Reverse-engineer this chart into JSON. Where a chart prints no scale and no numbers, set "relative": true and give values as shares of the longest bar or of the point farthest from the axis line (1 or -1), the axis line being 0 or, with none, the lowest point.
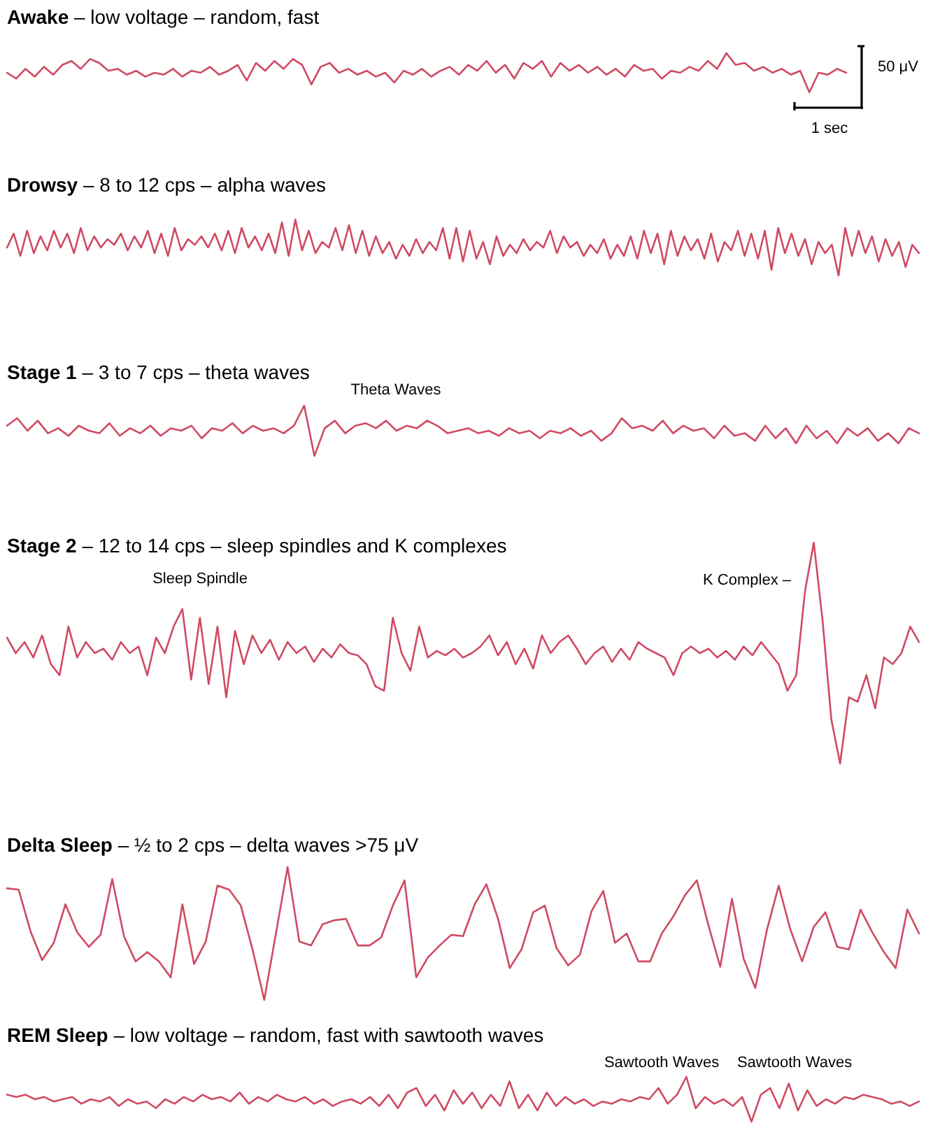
{
  "chart_data": [
    {
      "type": "line",
      "title": "Awake – low voltage – random, fast",
      "relative": true,
      "annotations": [
        "50 μV",
        "1 sec"
      ],
      "categories": [
        null,
        null,
        null,
        null,
        null,
        null,
        null,
        null,
        null,
        null,
        null,
        null,
        null,
        null,
        null,
        null,
        null,
        null,
        null,
        null,
        null,
        null,
        null,
        null,
        null,
        null,
        null,
        null,
        null,
        null,
        null,
        null,
        null,
        null,
        null,
        null,
        null,
        null,
        null,
        null,
        null,
        null,
        null,
        null,
        null,
        null,
        null,
        null,
        null,
        null,
        null,
        null,
        null,
        null,
        null,
        null,
        null,
        null,
        null,
        null,
        null,
        null,
        null,
        null,
        null,
        null,
        null,
        null,
        null,
        null,
        null,
        null,
        null,
        null,
        null,
        null,
        null,
        null,
        null,
        null,
        null,
        null,
        null,
        null,
        null,
        null,
        null,
        null,
        null,
        null,
        null,
        null
      ],
      "series": [
        {
          "color": "#cf4a62",
          "values": [
            0.5,
            0.35,
            0.6,
            0.4,
            0.65,
            0.45,
            0.7,
            0.8,
            0.6,
            0.85,
            0.75,
            0.55,
            0.6,
            0.45,
            0.55,
            0.4,
            0.5,
            0.45,
            0.6,
            0.4,
            0.55,
            0.5,
            0.65,
            0.45,
            0.55,
            0.7,
            0.3,
            0.75,
            0.55,
            0.8,
            0.6,
            0.85,
            0.7,
            0.2,
            0.65,
            0.75,
            0.5,
            0.6,
            0.45,
            0.55,
            0.4,
            0.5,
            0.25,
            0.55,
            0.45,
            0.6,
            0.4,
            0.55,
            0.65,
            0.45,
            0.7,
            0.55,
            0.8,
            0.5,
            0.7,
            0.35,
            0.75,
            0.6,
            0.8,
            0.4,
            0.75,
            0.55,
            0.7,
            0.5,
            0.65,
            0.45,
            0.6,
            0.4,
            0.7,
            0.55,
            0.6,
            0.35,
            0.55,
            0.5,
            0.65,
            0.55,
            0.8,
            0.6,
            1,
            0.7,
            0.75,
            0.55,
            0.65,
            0.5,
            0.6,
            0.45,
            0.55,
            0,
            0.5,
            0.45,
            0.6,
            0.5
          ]
        }
      ]
    },
    {
      "type": "line",
      "title": "Drowsy – 8 to 12 cps – alpha waves",
      "relative": true,
      "categories": [
        null,
        null,
        null,
        null,
        null,
        null,
        null,
        null,
        null,
        null,
        null,
        null,
        null,
        null,
        null,
        null,
        null,
        null,
        null,
        null,
        null,
        null,
        null,
        null,
        null,
        null,
        null,
        null,
        null,
        null,
        null,
        null,
        null,
        null,
        null,
        null,
        null,
        null,
        null,
        null,
        null,
        null,
        null,
        null,
        null,
        null,
        null,
        null,
        null,
        null,
        null,
        null,
        null,
        null,
        null,
        null,
        null,
        null,
        null,
        null,
        null,
        null,
        null,
        null,
        null,
        null,
        null,
        null,
        null,
        null,
        null,
        null,
        null,
        null,
        null,
        null,
        null,
        null,
        null,
        null,
        null,
        null,
        null,
        null,
        null,
        null,
        null,
        null,
        null,
        null,
        null,
        null,
        null,
        null,
        null,
        null,
        null,
        null,
        null,
        null,
        null,
        null,
        null,
        null,
        null,
        null,
        null,
        null,
        null,
        null,
        null,
        null,
        null,
        null,
        null,
        null,
        null,
        null,
        null,
        null,
        null,
        null,
        null,
        null,
        null,
        null,
        null,
        null,
        null,
        null,
        null,
        null,
        null,
        null,
        null,
        null,
        null
      ],
      "series": [
        {
          "color": "#cf4a62",
          "values": [
            0.5,
            0.75,
            0.35,
            0.8,
            0.4,
            0.7,
            0.45,
            0.8,
            0.5,
            0.75,
            0.4,
            0.85,
            0.45,
            0.7,
            0.5,
            0.65,
            0.55,
            0.75,
            0.45,
            0.7,
            0.5,
            0.8,
            0.4,
            0.75,
            0.35,
            0.85,
            0.45,
            0.65,
            0.55,
            0.7,
            0.5,
            0.75,
            0.45,
            0.8,
            0.4,
            0.85,
            0.5,
            0.7,
            0.45,
            0.75,
            0.4,
            0.95,
            0.35,
            1,
            0.45,
            0.8,
            0.4,
            0.6,
            0.5,
            0.85,
            0.45,
            0.9,
            0.4,
            0.8,
            0.35,
            0.7,
            0.4,
            0.6,
            0.3,
            0.55,
            0.35,
            0.65,
            0.4,
            0.6,
            0.45,
            0.85,
            0.3,
            0.85,
            0.25,
            0.8,
            0.3,
            0.6,
            0.2,
            0.7,
            0.35,
            0.55,
            0.4,
            0.65,
            0.45,
            0.6,
            0.5,
            0.8,
            0.4,
            0.7,
            0.5,
            0.6,
            0.35,
            0.55,
            0.4,
            0.65,
            0.3,
            0.55,
            0.35,
            0.7,
            0.3,
            0.8,
            0.4,
            0.75,
            0.2,
            0.8,
            0.35,
            0.7,
            0.45,
            0.65,
            0.3,
            0.75,
            0.25,
            0.6,
            0.45,
            0.8,
            0.35,
            0.75,
            0.3,
            0.8,
            0.1,
            0.85,
            0.4,
            0.75,
            0.35,
            0.65,
            0.2,
            0.6,
            0.4,
            0.55,
            0,
            0.85,
            0.35,
            0.8,
            0.4,
            0.7,
            0.25,
            0.65,
            0.35,
            0.6,
            0.15,
            0.55,
            0.4
          ]
        }
      ]
    },
    {
      "type": "line",
      "title": "Stage 1 – 3 to 7 cps – theta waves",
      "relative": true,
      "annotations": [
        "Theta Waves"
      ],
      "categories": [
        null,
        null,
        null,
        null,
        null,
        null,
        null,
        null,
        null,
        null,
        null,
        null,
        null,
        null,
        null,
        null,
        null,
        null,
        null,
        null,
        null,
        null,
        null,
        null,
        null,
        null,
        null,
        null,
        null,
        null,
        null,
        null,
        null,
        null,
        null,
        null,
        null,
        null,
        null,
        null,
        null,
        null,
        null,
        null,
        null,
        null,
        null,
        null,
        null,
        null,
        null,
        null,
        null,
        null,
        null,
        null,
        null,
        null,
        null,
        null,
        null,
        null,
        null,
        null,
        null,
        null,
        null,
        null,
        null,
        null,
        null,
        null,
        null,
        null,
        null,
        null,
        null,
        null,
        null,
        null,
        null,
        null,
        null,
        null,
        null,
        null,
        null,
        null,
        null,
        null
      ],
      "series": [
        {
          "color": "#cf4a62",
          "values": [
            0.6,
            0.75,
            0.5,
            0.7,
            0.45,
            0.55,
            0.4,
            0.6,
            0.5,
            0.45,
            0.65,
            0.4,
            0.55,
            0.45,
            0.6,
            0.4,
            0.55,
            0.5,
            0.6,
            0.35,
            0.55,
            0.5,
            0.65,
            0.45,
            0.6,
            0.5,
            0.55,
            0.45,
            0.6,
            1,
            0,
            0.55,
            0.7,
            0.45,
            0.6,
            0.65,
            0.55,
            0.7,
            0.5,
            0.6,
            0.55,
            0.7,
            0.6,
            0.45,
            0.5,
            0.55,
            0.45,
            0.5,
            0.4,
            0.55,
            0.45,
            0.5,
            0.35,
            0.5,
            0.45,
            0.55,
            0.4,
            0.5,
            0.3,
            0.45,
            0.75,
            0.55,
            0.6,
            0.5,
            0.7,
            0.45,
            0.6,
            0.5,
            0.55,
            0.35,
            0.6,
            0.4,
            0.45,
            0.3,
            0.6,
            0.35,
            0.55,
            0.25,
            0.6,
            0.35,
            0.5,
            0.25,
            0.55,
            0.4,
            0.55,
            0.3,
            0.45,
            0.25,
            0.55,
            0.45
          ]
        }
      ]
    },
    {
      "type": "line",
      "title": "Stage 2 – 12 to 14 cps – sleep spindles and K complexes",
      "relative": true,
      "annotations": [
        "Sleep Spindle",
        "K Complex –"
      ],
      "categories": [
        null,
        null,
        null,
        null,
        null,
        null,
        null,
        null,
        null,
        null,
        null,
        null,
        null,
        null,
        null,
        null,
        null,
        null,
        null,
        null,
        null,
        null,
        null,
        null,
        null,
        null,
        null,
        null,
        null,
        null,
        null,
        null,
        null,
        null,
        null,
        null,
        null,
        null,
        null,
        null,
        null,
        null,
        null,
        null,
        null,
        null,
        null,
        null,
        null,
        null,
        null,
        null,
        null,
        null,
        null,
        null,
        null,
        null,
        null,
        null,
        null,
        null,
        null,
        null,
        null,
        null,
        null,
        null,
        null,
        null,
        null,
        null,
        null,
        null,
        null,
        null,
        null,
        null,
        null,
        null,
        null,
        null,
        null,
        null,
        null,
        null,
        null,
        null,
        null,
        null,
        null,
        null,
        null,
        null,
        null,
        null,
        null,
        null,
        null,
        null,
        null,
        null,
        null,
        null,
        null
      ],
      "series": [
        {
          "color": "#cf4a62",
          "values": [
            0.57,
            0.5,
            0.55,
            0.48,
            0.58,
            0.45,
            0.4,
            0.62,
            0.48,
            0.55,
            0.5,
            0.52,
            0.47,
            0.55,
            0.5,
            0.53,
            0.4,
            0.57,
            0.5,
            0.62,
            0.7,
            0.38,
            0.66,
            0.36,
            0.62,
            0.3,
            0.6,
            0.45,
            0.58,
            0.5,
            0.56,
            0.47,
            0.55,
            0.5,
            0.53,
            0.46,
            0.52,
            0.48,
            0.54,
            0.5,
            0.49,
            0.45,
            0.35,
            0.33,
            0.66,
            0.5,
            0.42,
            0.62,
            0.48,
            0.51,
            0.49,
            0.52,
            0.48,
            0.5,
            0.53,
            0.58,
            0.49,
            0.55,
            0.45,
            0.52,
            0.43,
            0.58,
            0.5,
            0.55,
            0.58,
            0.52,
            0.45,
            0.5,
            0.53,
            0.46,
            0.52,
            0.47,
            0.55,
            0.52,
            0.5,
            0.48,
            0.4,
            0.5,
            0.53,
            0.5,
            0.52,
            0.48,
            0.51,
            0.47,
            0.53,
            0.49,
            0.55,
            0.5,
            0.45,
            0.33,
            0.4,
            0.78,
            1,
            0.65,
            0.2,
            0,
            0.3,
            0.28,
            0.4,
            0.25,
            0.48,
            0.45,
            0.5,
            0.62,
            0.55
          ]
        }
      ]
    },
    {
      "type": "line",
      "title": "Delta Sleep – ½ to 2 cps – delta waves >75 μV",
      "relative": true,
      "categories": [
        null,
        null,
        null,
        null,
        null,
        null,
        null,
        null,
        null,
        null,
        null,
        null,
        null,
        null,
        null,
        null,
        null,
        null,
        null,
        null,
        null,
        null,
        null,
        null,
        null,
        null,
        null,
        null,
        null,
        null,
        null,
        null,
        null,
        null,
        null,
        null,
        null,
        null,
        null,
        null,
        null,
        null,
        null,
        null,
        null,
        null,
        null,
        null,
        null,
        null,
        null,
        null,
        null,
        null,
        null,
        null,
        null,
        null,
        null,
        null,
        null,
        null,
        null,
        null,
        null,
        null,
        null,
        null,
        null,
        null,
        null,
        null,
        null,
        null,
        null,
        null,
        null,
        null,
        null
      ],
      "series": [
        {
          "color": "#cf4a62",
          "values": [
            0.84,
            0.83,
            0.52,
            0.3,
            0.43,
            0.72,
            0.51,
            0.4,
            0.49,
            0.91,
            0.48,
            0.29,
            0.36,
            0.29,
            0.17,
            0.72,
            0.27,
            0.44,
            0.86,
            0.83,
            0.71,
            0.38,
            0,
            0.5,
            1,
            0.44,
            0.41,
            0.57,
            0.6,
            0.61,
            0.41,
            0.41,
            0.47,
            0.71,
            0.9,
            0.17,
            0.32,
            0.41,
            0.49,
            0.48,
            0.72,
            0.87,
            0.61,
            0.24,
            0.38,
            0.66,
            0.71,
            0.39,
            0.26,
            0.34,
            0.67,
            0.82,
            0.43,
            0.5,
            0.29,
            0.29,
            0.5,
            0.63,
            0.79,
            0.9,
            0.56,
            0.25,
            0.76,
            0.31,
            0.09,
            0.53,
            0.86,
            0.53,
            0.29,
            0.55,
            0.66,
            0.4,
            0.38,
            0.68,
            0.51,
            0.36,
            0.24,
            0.68,
            0.5
          ]
        }
      ]
    },
    {
      "type": "line",
      "title": "REM Sleep – low voltage – random, fast with sawtooth waves",
      "relative": true,
      "annotations": [
        "Sawtooth Waves",
        "Sawtooth Waves"
      ],
      "categories": [
        null,
        null,
        null,
        null,
        null,
        null,
        null,
        null,
        null,
        null,
        null,
        null,
        null,
        null,
        null,
        null,
        null,
        null,
        null,
        null,
        null,
        null,
        null,
        null,
        null,
        null,
        null,
        null,
        null,
        null,
        null,
        null,
        null,
        null,
        null,
        null,
        null,
        null,
        null,
        null,
        null,
        null,
        null,
        null,
        null,
        null,
        null,
        null,
        null,
        null,
        null,
        null,
        null,
        null,
        null,
        null,
        null,
        null,
        null,
        null,
        null,
        null,
        null,
        null,
        null,
        null,
        null,
        null,
        null,
        null,
        null,
        null,
        null,
        null,
        null,
        null,
        null,
        null,
        null,
        null,
        null,
        null,
        null,
        null,
        null,
        null,
        null,
        null,
        null,
        null,
        null,
        null,
        null,
        null,
        null,
        null,
        null,
        null,
        null
      ],
      "series": [
        {
          "color": "#cf4a62",
          "values": [
            0.6,
            0.55,
            0.6,
            0.5,
            0.55,
            0.45,
            0.5,
            0.55,
            0.4,
            0.5,
            0.45,
            0.55,
            0.35,
            0.5,
            0.4,
            0.45,
            0.3,
            0.5,
            0.4,
            0.55,
            0.45,
            0.6,
            0.5,
            0.55,
            0.45,
            0.65,
            0.4,
            0.55,
            0.45,
            0.6,
            0.5,
            0.45,
            0.55,
            0.4,
            0.5,
            0.35,
            0.45,
            0.5,
            0.4,
            0.55,
            0.35,
            0.6,
            0.3,
            0.65,
            0.75,
            0.35,
            0.6,
            0.25,
            0.7,
            0.4,
            0.65,
            0.3,
            0.6,
            0.35,
            0.9,
            0.3,
            0.6,
            0.25,
            0.65,
            0.35,
            0.55,
            0.4,
            0.5,
            0.35,
            0.45,
            0.4,
            0.5,
            0.45,
            0.55,
            0.5,
            0.75,
            0.4,
            0.6,
            1,
            0.3,
            0.55,
            0.4,
            0.5,
            0.35,
            0.55,
            0,
            0.6,
            0.75,
            0.3,
            0.85,
            0.25,
            0.7,
            0.35,
            0.5,
            0.4,
            0.55,
            0.5,
            0.6,
            0.55,
            0.5,
            0.4,
            0.45,
            0.35,
            0.45
          ]
        }
      ]
    }
  ]
}
